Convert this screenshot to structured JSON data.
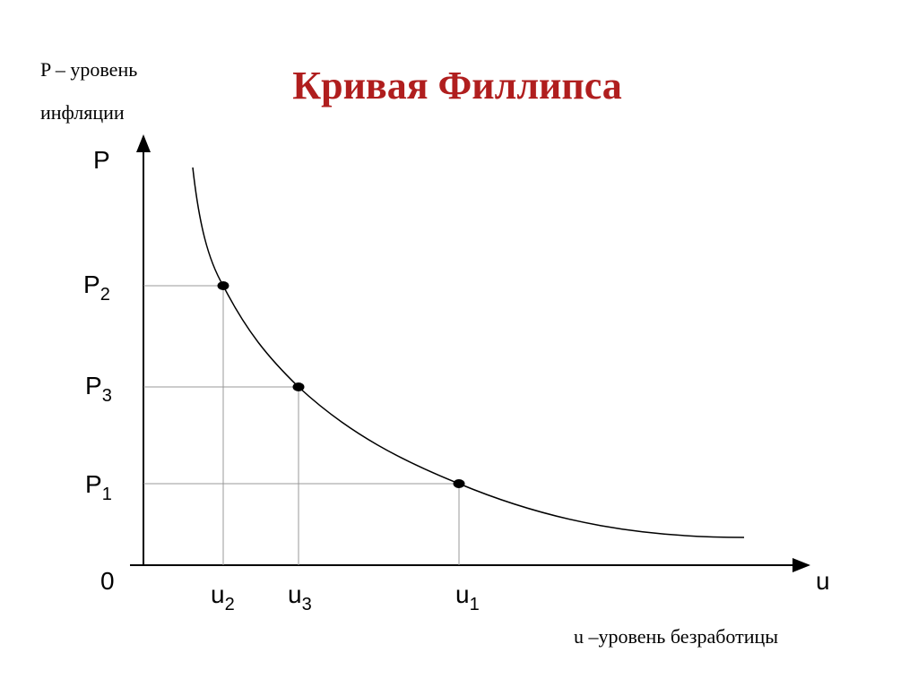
{
  "title": "Кривая Филлипса",
  "y_axis": {
    "caption": [
      "P – уровень",
      "инфляции"
    ],
    "letter": "P",
    "labels": [
      {
        "letter": "P",
        "sub": "2"
      },
      {
        "letter": "P",
        "sub": "3"
      },
      {
        "letter": "P",
        "sub": "1"
      }
    ]
  },
  "origin": "0",
  "x_axis": {
    "caption": "u –уровень безработицы",
    "letter": "u",
    "labels": [
      {
        "letter": "u",
        "sub": "2"
      },
      {
        "letter": "u",
        "sub": "3"
      },
      {
        "letter": "u",
        "sub": "1"
      }
    ]
  }
}
